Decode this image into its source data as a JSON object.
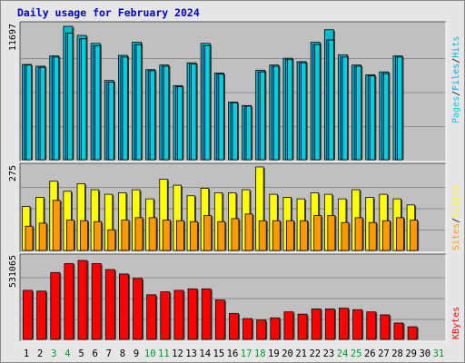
{
  "title": "Daily usage for February 2024",
  "colors": {
    "hits": "#00b9cc",
    "files": "#00a6ee",
    "pages": "#00cfdf",
    "visits": "#ffff00",
    "sites": "#ff9900",
    "kbytes": "#ff0000",
    "weekend_day": "#009933",
    "weekday_day": "#000000",
    "panel_bg": "#c0c0c0",
    "title": "#0000cc"
  },
  "chart_data": [
    {
      "type": "bar",
      "title": "Daily usage for February 2024",
      "categories": [
        "1",
        "2",
        "3",
        "4",
        "5",
        "6",
        "7",
        "8",
        "9",
        "10",
        "11",
        "12",
        "13",
        "14",
        "15",
        "16",
        "17",
        "18",
        "19",
        "20",
        "21",
        "22",
        "23",
        "24",
        "25",
        "26",
        "27",
        "28",
        "29",
        "30",
        "31"
      ],
      "ylim": [
        0,
        11697
      ],
      "ymax_label": "11697",
      "legend": [
        "Pages",
        "/",
        "Files",
        "/",
        "Hits"
      ],
      "series": [
        {
          "name": "Hits",
          "values": [
            8350,
            8200,
            9100,
            11697,
            10900,
            10200,
            6950,
            9150,
            10300,
            7900,
            8300,
            6500,
            8500,
            10200,
            7600,
            5050,
            4750,
            7850,
            8300,
            8900,
            8600,
            10300,
            11400,
            9200,
            8300,
            7450,
            7700,
            9100,
            0,
            0,
            0
          ]
        },
        {
          "name": "Files",
          "values": [
            8300,
            8100,
            9000,
            11100,
            10600,
            10000,
            6800,
            9000,
            10100,
            7800,
            8200,
            6400,
            8400,
            10000,
            7500,
            5000,
            4700,
            7700,
            8200,
            8800,
            8500,
            10100,
            10500,
            9000,
            8200,
            7350,
            7550,
            9000,
            0,
            0,
            0
          ]
        },
        {
          "name": "Pages",
          "values": [
            8300,
            8100,
            9000,
            11100,
            10600,
            10000,
            6800,
            9000,
            10100,
            7800,
            8200,
            6400,
            8400,
            10000,
            7500,
            5000,
            4700,
            7700,
            8200,
            8800,
            8500,
            10100,
            10500,
            9000,
            8200,
            7350,
            7550,
            9000,
            0,
            0,
            0
          ]
        }
      ]
    },
    {
      "type": "bar",
      "categories": [
        "1",
        "2",
        "3",
        "4",
        "5",
        "6",
        "7",
        "8",
        "9",
        "10",
        "11",
        "12",
        "13",
        "14",
        "15",
        "16",
        "17",
        "18",
        "19",
        "20",
        "21",
        "22",
        "23",
        "24",
        "25",
        "26",
        "27",
        "28",
        "29",
        "30",
        "31"
      ],
      "ylim": [
        0,
        275
      ],
      "ymax_label": "275",
      "legend": [
        "Sites",
        "/",
        "Visits"
      ],
      "series": [
        {
          "name": "Visits",
          "values": [
            145,
            175,
            228,
            195,
            220,
            200,
            185,
            190,
            200,
            170,
            235,
            215,
            180,
            205,
            190,
            190,
            200,
            275,
            185,
            175,
            170,
            190,
            185,
            170,
            200,
            175,
            185,
            170,
            150,
            0,
            0
          ]
        },
        {
          "name": "Sites",
          "values": [
            80,
            90,
            165,
            100,
            98,
            95,
            68,
            100,
            108,
            108,
            100,
            98,
            95,
            115,
            95,
            105,
            120,
            98,
            98,
            98,
            98,
            115,
            115,
            92,
            108,
            92,
            98,
            108,
            100,
            0,
            0
          ]
        }
      ]
    },
    {
      "type": "bar",
      "categories": [
        "1",
        "2",
        "3",
        "4",
        "5",
        "6",
        "7",
        "8",
        "9",
        "10",
        "11",
        "12",
        "13",
        "14",
        "15",
        "16",
        "17",
        "18",
        "19",
        "20",
        "21",
        "22",
        "23",
        "24",
        "25",
        "26",
        "27",
        "28",
        "29",
        "30",
        "31"
      ],
      "ylim": [
        0,
        531065
      ],
      "ymax_label": "531065",
      "legend": [
        "KBytes"
      ],
      "series": [
        {
          "name": "KBytes",
          "values": [
            330000,
            325000,
            450000,
            510000,
            531065,
            510000,
            470000,
            440000,
            410000,
            300000,
            320000,
            330000,
            340000,
            340000,
            265000,
            175000,
            140000,
            130000,
            145000,
            185000,
            170000,
            205000,
            205000,
            210000,
            200000,
            185000,
            165000,
            110000,
            85000,
            0,
            0
          ]
        }
      ]
    }
  ],
  "x_days": [
    {
      "label": "1",
      "weekend": false
    },
    {
      "label": "2",
      "weekend": false
    },
    {
      "label": "3",
      "weekend": true
    },
    {
      "label": "4",
      "weekend": true
    },
    {
      "label": "5",
      "weekend": false
    },
    {
      "label": "6",
      "weekend": false
    },
    {
      "label": "7",
      "weekend": false
    },
    {
      "label": "8",
      "weekend": false
    },
    {
      "label": "9",
      "weekend": false
    },
    {
      "label": "10",
      "weekend": true
    },
    {
      "label": "11",
      "weekend": true
    },
    {
      "label": "12",
      "weekend": false
    },
    {
      "label": "13",
      "weekend": false
    },
    {
      "label": "14",
      "weekend": false
    },
    {
      "label": "15",
      "weekend": false
    },
    {
      "label": "16",
      "weekend": false
    },
    {
      "label": "17",
      "weekend": true
    },
    {
      "label": "18",
      "weekend": true
    },
    {
      "label": "19",
      "weekend": false
    },
    {
      "label": "20",
      "weekend": false
    },
    {
      "label": "21",
      "weekend": false
    },
    {
      "label": "22",
      "weekend": false
    },
    {
      "label": "23",
      "weekend": false
    },
    {
      "label": "24",
      "weekend": true
    },
    {
      "label": "25",
      "weekend": true
    },
    {
      "label": "26",
      "weekend": false
    },
    {
      "label": "27",
      "weekend": false
    },
    {
      "label": "28",
      "weekend": false
    },
    {
      "label": "29",
      "weekend": false
    },
    {
      "label": "30",
      "weekend": false
    },
    {
      "label": "31",
      "weekend": true
    }
  ]
}
